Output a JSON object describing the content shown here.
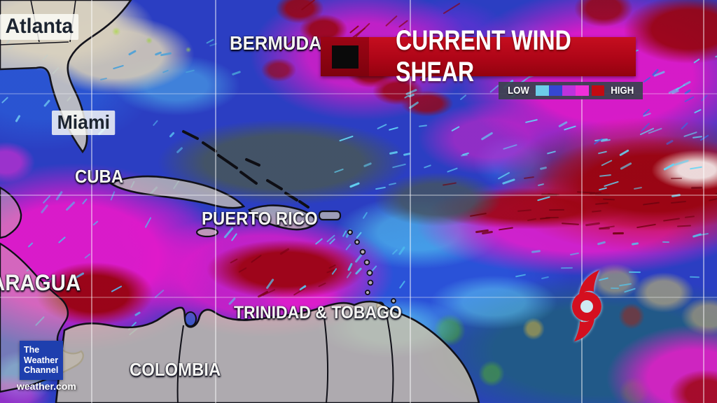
{
  "header": {
    "title": "CURRENT WIND SHEAR",
    "legend": {
      "low_label": "LOW",
      "high_label": "HIGH",
      "gradient_colors": [
        "#6ccde9",
        "#3547d2",
        "#bd33dd",
        "#ef2fd9"
      ],
      "high_color": "#c30a12",
      "bar_background": "#39424e"
    },
    "banner_color": "#ae0517"
  },
  "map": {
    "labels": {
      "atlanta": "Atlanta",
      "miami": "Miami",
      "bermuda": "BERMUDA",
      "cuba": "CUBA",
      "puerto_rico": "PUERTO RICO",
      "nicaragua_partial": "ARAGUA",
      "trinidad_tobago": "TRINIDAD & TOBAGO",
      "colombia": "COLOMBIA"
    },
    "storm_symbol": "tropical-storm",
    "storm_color": "#d40f1f"
  },
  "branding": {
    "logo_lines": [
      "The",
      "Weather",
      "Channel"
    ],
    "site": "weather.com"
  }
}
